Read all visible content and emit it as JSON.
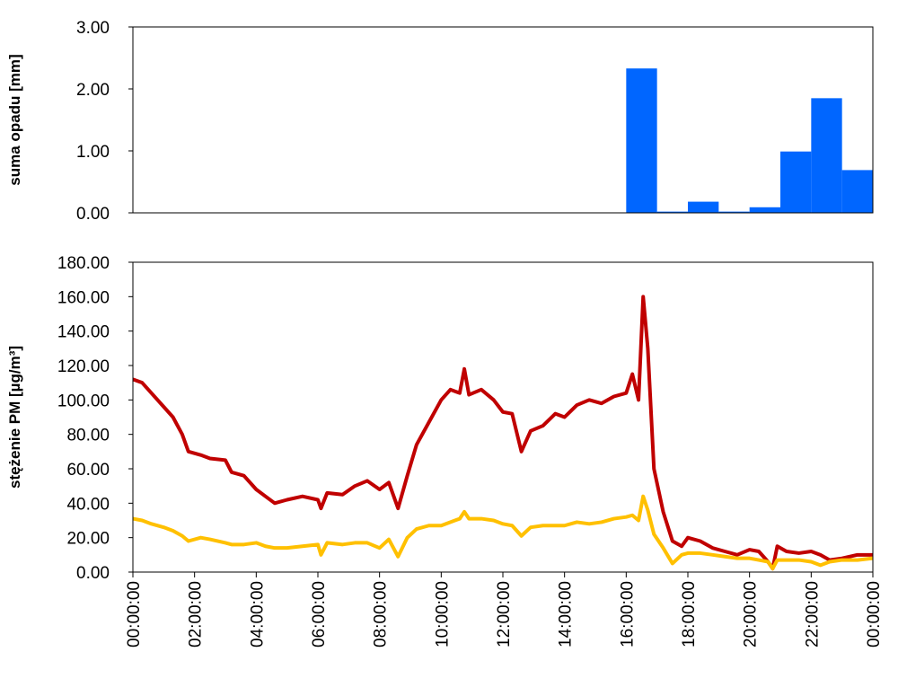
{
  "chart_data": [
    {
      "type": "histogram",
      "ylabel": "suma opadu [mm]",
      "color": "#0066ff",
      "bins": [
        0,
        1,
        2,
        3,
        4,
        5,
        6,
        7,
        8,
        9,
        10,
        11,
        12,
        13,
        14,
        15,
        16,
        17,
        18,
        19,
        20,
        21,
        22,
        23,
        24
      ],
      "values": [
        0,
        0,
        0,
        0,
        0,
        0,
        0,
        0,
        0,
        0,
        0,
        0,
        0,
        0,
        0,
        0,
        2.33,
        0.02,
        0.18,
        0.02,
        0.09,
        0.99,
        1.85,
        0.69
      ],
      "xlim": [
        0,
        24
      ],
      "ylim": [
        0,
        3
      ],
      "yticks": [
        {
          "value": 0,
          "label": "0.00"
        },
        {
          "value": 1,
          "label": "1.00"
        },
        {
          "value": 2,
          "label": "2.00"
        },
        {
          "value": 3,
          "label": "3.00"
        }
      ]
    },
    {
      "type": "line",
      "ylabel": "stężenie PM [µg/m³]",
      "x": [
        0,
        0.3,
        0.6,
        1,
        1.3,
        1.6,
        1.8,
        2.2,
        2.5,
        3,
        3.2,
        3.6,
        4,
        4.3,
        4.6,
        5,
        5.5,
        6,
        6.1,
        6.3,
        6.8,
        7.2,
        7.6,
        8,
        8.3,
        8.6,
        8.9,
        9.2,
        9.6,
        10,
        10.3,
        10.6,
        10.75,
        10.9,
        11.3,
        11.7,
        12,
        12.3,
        12.6,
        12.9,
        13.3,
        13.7,
        14,
        14.4,
        14.8,
        15.2,
        15.6,
        16,
        16.2,
        16.4,
        16.55,
        16.7,
        16.9,
        17.2,
        17.5,
        17.8,
        18,
        18.4,
        18.8,
        19.2,
        19.6,
        20,
        20.3,
        20.6,
        20.75,
        20.9,
        21.2,
        21.6,
        22,
        22.3,
        22.6,
        23,
        23.5,
        24
      ],
      "series": [
        {
          "color": "#c00000",
          "values": [
            112,
            110,
            104,
            96,
            90,
            80,
            70,
            68,
            66,
            65,
            58,
            56,
            48,
            44,
            40,
            42,
            44,
            42,
            37,
            46,
            45,
            50,
            53,
            48,
            52,
            37,
            56,
            74,
            87,
            100,
            106,
            104,
            118,
            103,
            106,
            100,
            93,
            92,
            70,
            82,
            85,
            92,
            90,
            97,
            100,
            98,
            102,
            104,
            115,
            100,
            160,
            130,
            60,
            35,
            18,
            15,
            20,
            18,
            14,
            12,
            10,
            13,
            12,
            6,
            2,
            15,
            12,
            11,
            12,
            10,
            7,
            8,
            10,
            10
          ]
        },
        {
          "color": "#ffc000",
          "values": [
            31,
            30,
            28,
            26,
            24,
            21,
            18,
            20,
            19,
            17,
            16,
            16,
            17,
            15,
            14,
            14,
            15,
            16,
            10,
            17,
            16,
            17,
            17,
            14,
            19,
            9,
            20,
            25,
            27,
            27,
            29,
            31,
            35,
            31,
            31,
            30,
            28,
            27,
            21,
            26,
            27,
            27,
            27,
            29,
            28,
            29,
            31,
            32,
            33,
            30,
            44,
            36,
            22,
            14,
            5,
            10,
            11,
            11,
            10,
            9,
            8,
            8,
            7,
            6,
            2,
            7,
            7,
            7,
            6,
            4,
            6,
            7,
            7,
            8
          ]
        }
      ],
      "xlim": [
        0,
        24
      ],
      "xticks": [
        {
          "value": 0,
          "label": "00:00:00"
        },
        {
          "value": 2,
          "label": "02:00:00"
        },
        {
          "value": 4,
          "label": "04:00:00"
        },
        {
          "value": 6,
          "label": "06:00:00"
        },
        {
          "value": 8,
          "label": "08:00:00"
        },
        {
          "value": 10,
          "label": "10:00:00"
        },
        {
          "value": 12,
          "label": "12:00:00"
        },
        {
          "value": 14,
          "label": "14:00:00"
        },
        {
          "value": 16,
          "label": "16:00:00"
        },
        {
          "value": 18,
          "label": "18:00:00"
        },
        {
          "value": 20,
          "label": "20:00:00"
        },
        {
          "value": 22,
          "label": "22:00:00"
        },
        {
          "value": 24,
          "label": "00:00:00"
        }
      ],
      "ylim": [
        0,
        180
      ],
      "yticks": [
        {
          "value": 0,
          "label": "0.00"
        },
        {
          "value": 20,
          "label": "20.00"
        },
        {
          "value": 40,
          "label": "40.00"
        },
        {
          "value": 60,
          "label": "60.00"
        },
        {
          "value": 80,
          "label": "80.00"
        },
        {
          "value": 100,
          "label": "100.00"
        },
        {
          "value": 120,
          "label": "120.00"
        },
        {
          "value": 140,
          "label": "140.00"
        },
        {
          "value": 160,
          "label": "160.00"
        },
        {
          "value": 180,
          "label": "180.00"
        }
      ]
    }
  ]
}
